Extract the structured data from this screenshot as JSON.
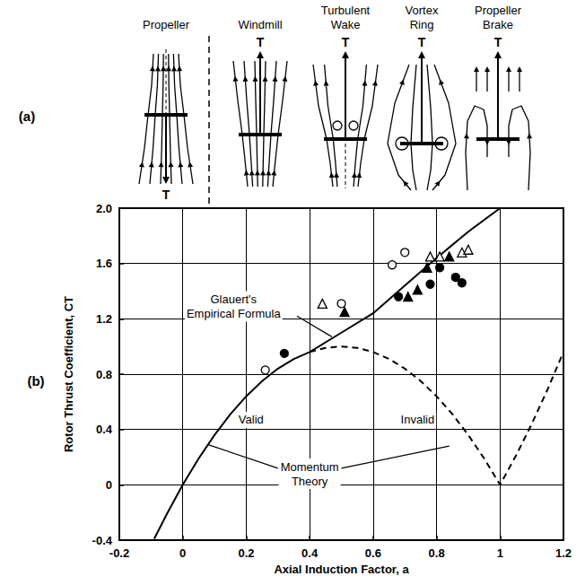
{
  "panel_a": {
    "label": "(a)",
    "diagrams": [
      {
        "title": "Propeller",
        "thrust": "T"
      },
      {
        "title": "Windmill",
        "thrust": "T"
      },
      {
        "title": "Turbulent Wake",
        "thrust": "T"
      },
      {
        "title": "Vortex Ring",
        "thrust": "T"
      },
      {
        "title": "Propeller Brake",
        "thrust": "T"
      }
    ]
  },
  "panel_b": {
    "label": "(b)"
  },
  "chart_data": {
    "type": "line",
    "x_label": "Axial Induction Factor, a",
    "y_label": "Rotor Thrust Coefficient, CT",
    "xlim": [
      -0.2,
      1.2
    ],
    "ylim": [
      -0.4,
      2.0
    ],
    "xticks": [
      -0.2,
      0,
      0.2,
      0.4,
      0.6,
      0.8,
      1.0,
      1.2
    ],
    "yticks": [
      -0.4,
      0,
      0.4,
      0.8,
      1.2,
      1.6,
      {
        "value": 2.0,
        "label": "2.0"
      }
    ],
    "grid": true,
    "annotations": [
      "Glauert's Empirical Formula",
      "Valid",
      "Invalid",
      "Momentum Theory"
    ],
    "series": [
      {
        "type": "line",
        "line_style": "solid",
        "color": "#000000",
        "x": [
          -0.09,
          -0.05,
          0,
          0.05,
          0.1,
          0.15,
          0.2,
          0.25,
          0.3,
          0.35,
          0.4
        ],
        "values": [
          -0.39,
          -0.21,
          0,
          0.19,
          0.36,
          0.51,
          0.64,
          0.75,
          0.84,
          0.91,
          0.96
        ]
      },
      {
        "type": "line",
        "line_style": "solid",
        "color": "#000000",
        "x": [
          0.4,
          0.5,
          0.6,
          0.7,
          0.8,
          0.9,
          1.0
        ],
        "values": [
          0.96,
          1.1,
          1.24,
          1.44,
          1.64,
          1.83,
          2.0
        ]
      },
      {
        "type": "line",
        "line_style": "dashed",
        "color": "#000000",
        "x": [
          0.4,
          0.45,
          0.5,
          0.55,
          0.6,
          0.65,
          0.7,
          0.75,
          0.8,
          0.85,
          0.9,
          0.95,
          1.0,
          1.05,
          1.1,
          1.15,
          1.2
        ],
        "values": [
          0.96,
          0.99,
          1.0,
          0.99,
          0.96,
          0.91,
          0.84,
          0.75,
          0.64,
          0.51,
          0.36,
          0.19,
          0,
          0.21,
          0.44,
          0.69,
          0.96
        ]
      },
      {
        "type": "scatter",
        "marker": "open_circle",
        "color": "#000000",
        "x": [
          0.26,
          0.5,
          0.66,
          0.7
        ],
        "values": [
          0.83,
          1.31,
          1.59,
          1.68
        ]
      },
      {
        "type": "scatter",
        "marker": "open_triangle",
        "color": "#000000",
        "x": [
          0.44,
          0.78,
          0.81,
          0.88,
          0.9
        ],
        "values": [
          1.31,
          1.65,
          1.65,
          1.68,
          1.7
        ]
      },
      {
        "type": "scatter",
        "marker": "filled_circle",
        "color": "#000000",
        "x": [
          0.32,
          0.68,
          0.78,
          0.81,
          0.86,
          0.88
        ],
        "values": [
          0.95,
          1.36,
          1.45,
          1.57,
          1.5,
          1.46
        ]
      },
      {
        "type": "scatter",
        "marker": "filled_triangle",
        "color": "#000000",
        "x": [
          0.51,
          0.71,
          0.74,
          0.77,
          0.84
        ],
        "values": [
          1.25,
          1.36,
          1.41,
          1.57,
          1.65
        ]
      }
    ]
  }
}
